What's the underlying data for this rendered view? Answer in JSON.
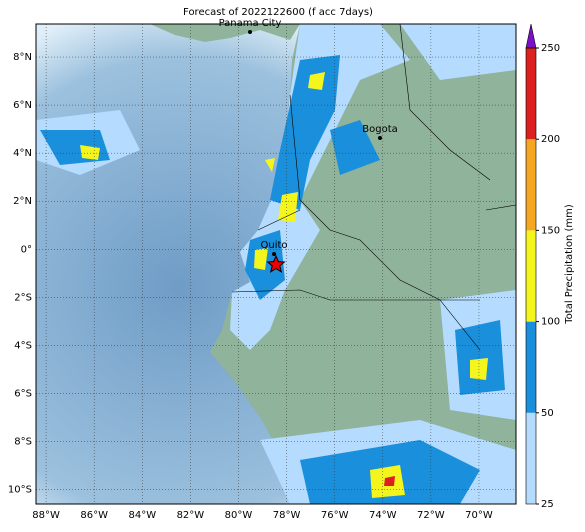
{
  "title": "Forecast of 2022122600 (f acc 7days)",
  "map": {
    "xlim": [
      -88.42,
      -68.46
    ],
    "ylim": [
      -10.6,
      9.375
    ],
    "xticks": [
      {
        "value": -88,
        "label": "88°W"
      },
      {
        "value": -86,
        "label": "86°W"
      },
      {
        "value": -84,
        "label": "84°W"
      },
      {
        "value": -82,
        "label": "82°W"
      },
      {
        "value": -80,
        "label": "80°W"
      },
      {
        "value": -78,
        "label": "78°W"
      },
      {
        "value": -76,
        "label": "76°W"
      },
      {
        "value": -74,
        "label": "74°W"
      },
      {
        "value": -72,
        "label": "72°W"
      },
      {
        "value": -70,
        "label": "70°W"
      }
    ],
    "yticks": [
      {
        "value": 8,
        "label": "8°N"
      },
      {
        "value": 6,
        "label": "6°N"
      },
      {
        "value": 4,
        "label": "4°N"
      },
      {
        "value": 2,
        "label": "2°N"
      },
      {
        "value": 0,
        "label": "0°"
      },
      {
        "value": -2,
        "label": "2°S"
      },
      {
        "value": -4,
        "label": "4°S"
      },
      {
        "value": -6,
        "label": "6°S"
      },
      {
        "value": -8,
        "label": "8°S"
      },
      {
        "value": -10,
        "label": "10°S"
      }
    ],
    "cities": [
      "Panama City",
      "Bogota",
      "Quito"
    ]
  },
  "colorbar": {
    "label": "Total Precipitation (mm)",
    "ticks": [
      25,
      50,
      100,
      150,
      200,
      250
    ],
    "colors": [
      "#b5dcff",
      "#1a8fdc",
      "#f5f51e",
      "#f5a623",
      "#dc2020"
    ],
    "extend_color": "#7a10c8"
  }
}
